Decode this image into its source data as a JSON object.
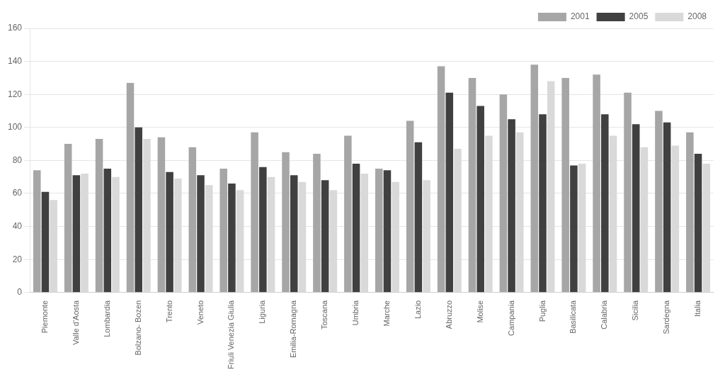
{
  "chart_data": {
    "type": "bar",
    "categories": [
      "Piemonte",
      "Valle d'Aosta",
      "Lombardia",
      "Bolzano- Bozen",
      "Trento",
      "Veneto",
      "Friuli Venezia Giulia",
      "Liguria",
      "Emilia-Romagna",
      "Toscana",
      "Umbria",
      "Marche",
      "Lazio",
      "Abruzzo",
      "Molise",
      "Campania",
      "Puglia",
      "Basilicata",
      "Calabria",
      "Sicilia",
      "Sardegna",
      "Italia"
    ],
    "series": [
      {
        "name": "2001",
        "color": "#a6a6a6",
        "values": [
          74,
          90,
          93,
          127,
          94,
          88,
          75,
          97,
          85,
          84,
          95,
          75,
          104,
          137,
          130,
          120,
          138,
          130,
          132,
          121,
          110,
          97
        ]
      },
      {
        "name": "2005",
        "color": "#404040",
        "values": [
          61,
          71,
          75,
          100,
          73,
          71,
          66,
          76,
          71,
          68,
          78,
          74,
          91,
          121,
          113,
          105,
          108,
          77,
          108,
          102,
          103,
          84
        ]
      },
      {
        "name": "2008",
        "color": "#d9d9d9",
        "values": [
          56,
          72,
          70,
          93,
          69,
          65,
          62,
          70,
          67,
          62,
          72,
          67,
          68,
          87,
          95,
          97,
          128,
          78,
          95,
          88,
          89,
          78
        ]
      }
    ],
    "ylim": [
      0,
      160
    ],
    "yticks": [
      0,
      20,
      40,
      60,
      80,
      100,
      120,
      140,
      160
    ],
    "grid": true,
    "legend": "upper right"
  }
}
